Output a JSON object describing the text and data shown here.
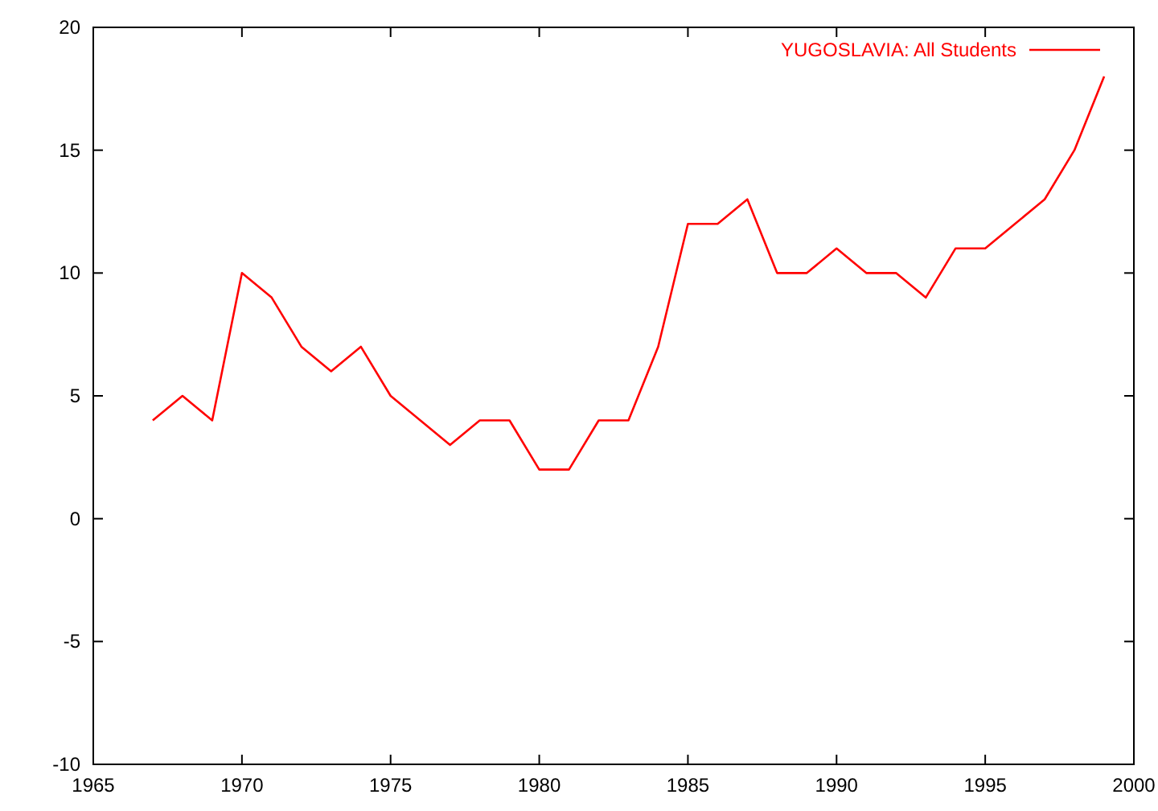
{
  "chart_data": {
    "type": "line",
    "x": [
      1967,
      1968,
      1969,
      1970,
      1971,
      1972,
      1973,
      1974,
      1975,
      1976,
      1977,
      1978,
      1979,
      1980,
      1981,
      1982,
      1983,
      1984,
      1985,
      1986,
      1987,
      1988,
      1989,
      1990,
      1991,
      1992,
      1993,
      1994,
      1995,
      1996,
      1997,
      1998,
      1999
    ],
    "series": [
      {
        "name": "YUGOSLAVIA: All Students",
        "color": "#ff0000",
        "values": [
          4,
          5,
          4,
          10,
          9,
          7,
          6,
          7,
          5,
          4,
          3,
          4,
          4,
          2,
          2,
          4,
          4,
          7,
          12,
          12,
          13,
          10,
          10,
          11,
          10,
          10,
          9,
          11,
          11,
          12,
          13,
          15,
          18
        ]
      }
    ],
    "xlim": [
      1965,
      2000
    ],
    "xticks": [
      1965,
      1970,
      1975,
      1980,
      1985,
      1990,
      1995,
      2000
    ],
    "ylim": [
      -10,
      20
    ],
    "yticks": [
      -10,
      -5,
      0,
      5,
      10,
      15,
      20
    ],
    "grid": false,
    "legend": "top right",
    "marker": "none",
    "line_style": "solid"
  }
}
